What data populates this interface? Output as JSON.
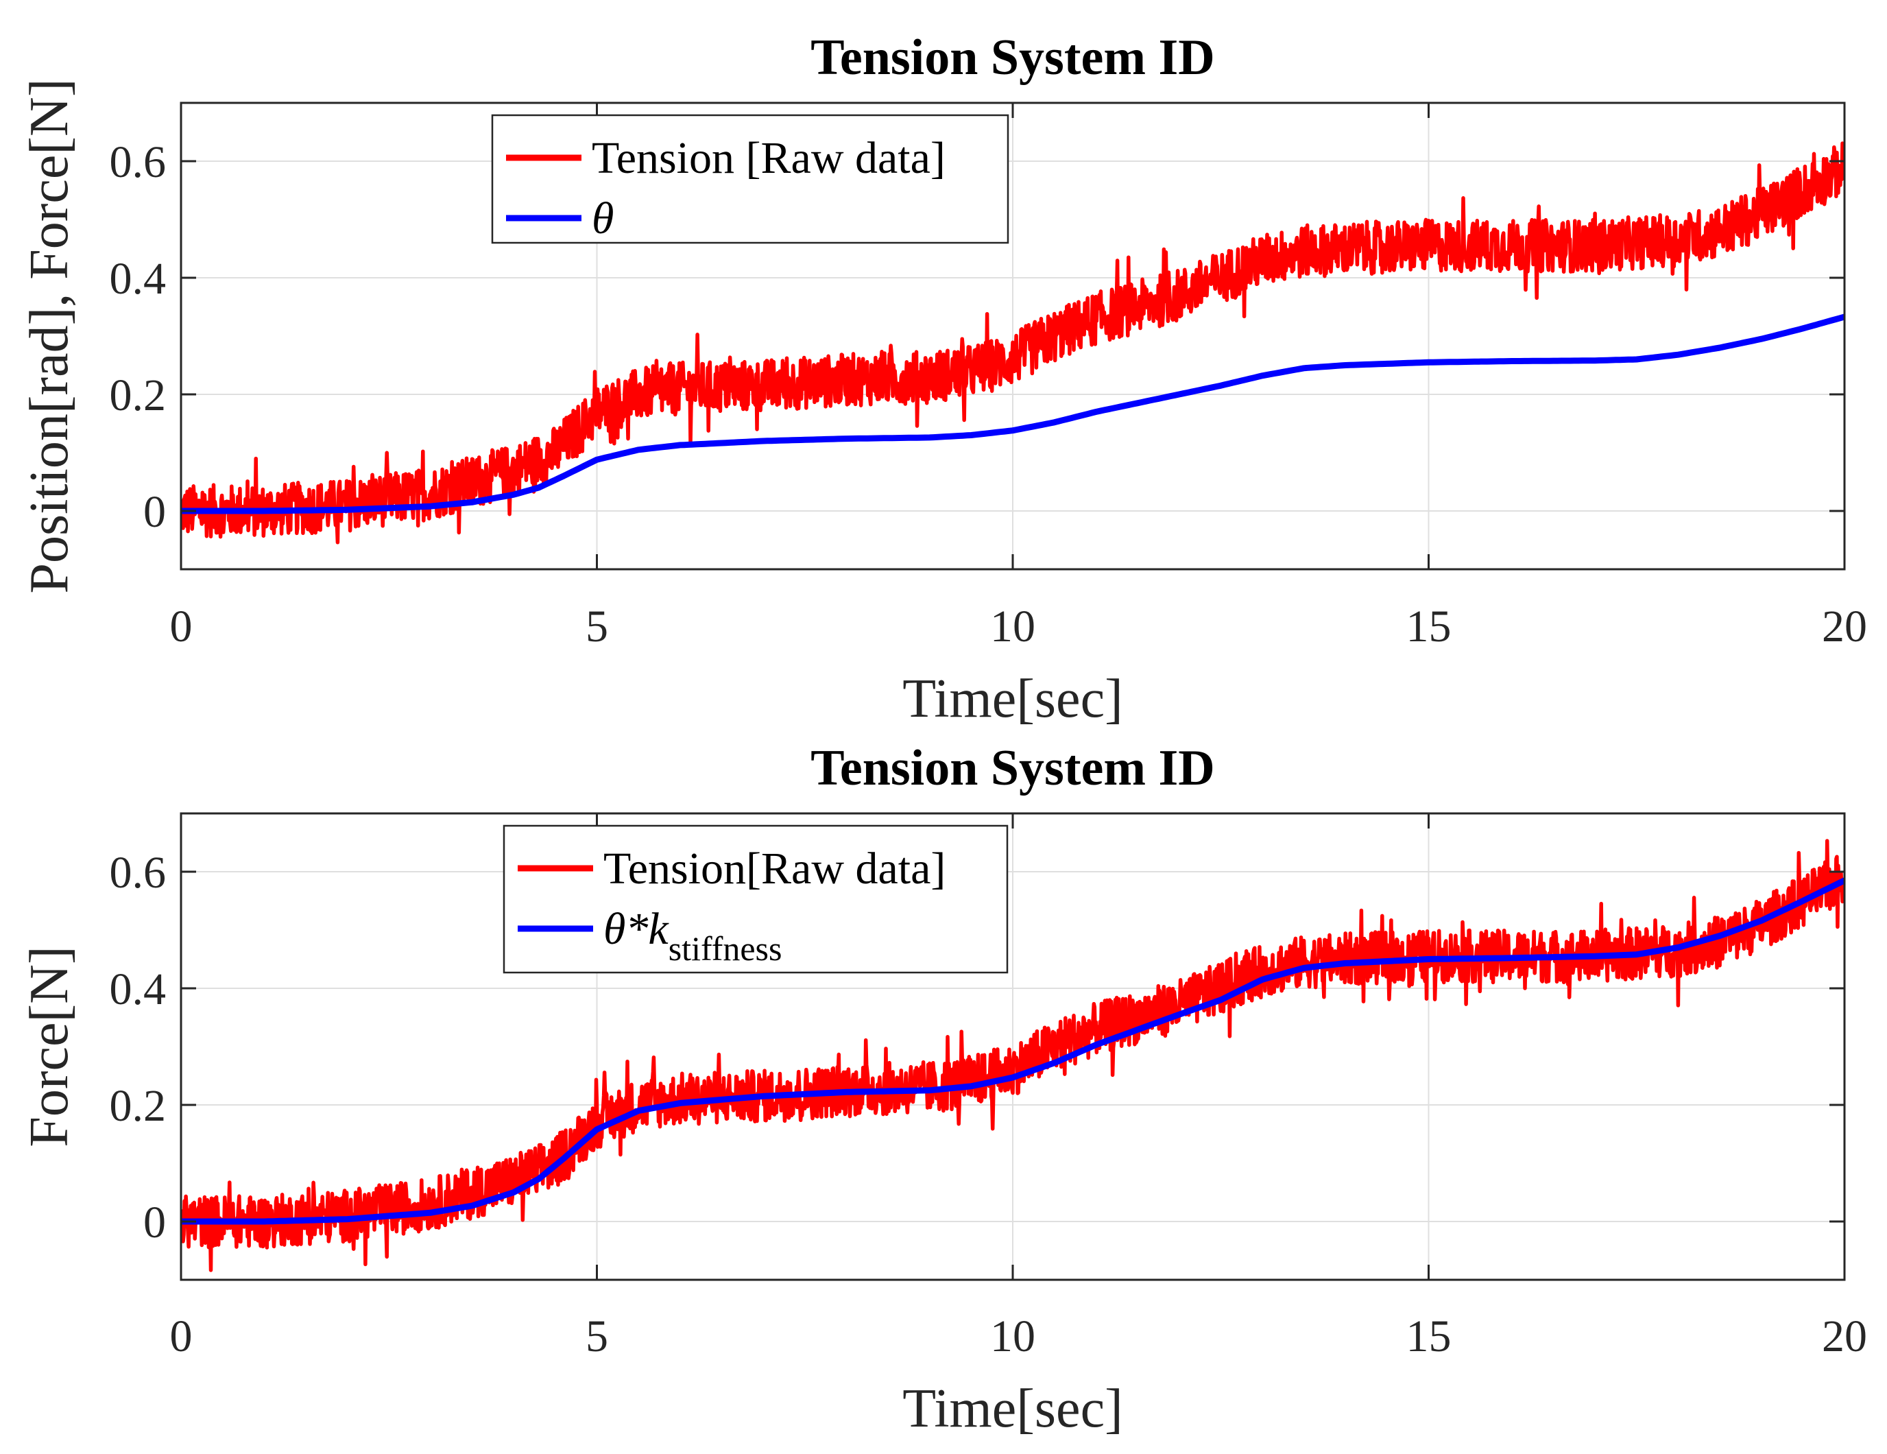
{
  "chart_data": [
    {
      "type": "line",
      "title": "Tension System ID",
      "xlabel": "Time[sec]",
      "ylabel": "Position[rad], Force[N]",
      "xlim": [
        0,
        20
      ],
      "ylim": [
        -0.1,
        0.7
      ],
      "xticks": [
        0,
        5,
        10,
        15,
        20
      ],
      "xtick_labels": [
        "0",
        "5",
        "10",
        "15",
        "20"
      ],
      "yticks": [
        0,
        0.2,
        0.4,
        0.6
      ],
      "ytick_labels": [
        "0",
        "0.2",
        "0.4",
        "0.6"
      ],
      "grid": true,
      "legend_position": "top-left",
      "legend": [
        {
          "name": "Tension [Raw data]",
          "sub": "",
          "color": "#ff0000"
        },
        {
          "name": "θ",
          "sub": "",
          "color": "#0000ff"
        }
      ],
      "series": [
        {
          "name": "Tension [Raw data]",
          "color": "#ff0000",
          "kind": "noisy",
          "noise_amplitude": 0.045,
          "x": [
            0,
            1,
            2,
            3,
            3.5,
            4,
            4.5,
            5,
            5.5,
            6,
            7,
            8,
            9,
            9.5,
            10,
            10.5,
            11,
            12,
            13,
            13.5,
            14,
            15,
            16,
            17,
            18,
            18.5,
            19,
            19.5,
            20
          ],
          "y": [
            0.0,
            0.0,
            0.01,
            0.03,
            0.05,
            0.07,
            0.1,
            0.17,
            0.2,
            0.21,
            0.215,
            0.225,
            0.23,
            0.24,
            0.26,
            0.3,
            0.33,
            0.37,
            0.43,
            0.445,
            0.45,
            0.455,
            0.455,
            0.455,
            0.465,
            0.48,
            0.51,
            0.55,
            0.59
          ]
        },
        {
          "name": "θ",
          "color": "#0000ff",
          "kind": "smooth",
          "x": [
            0,
            1,
            2,
            3,
            3.5,
            4,
            4.3,
            4.6,
            5,
            5.5,
            6,
            7,
            8,
            9,
            9.5,
            10,
            10.5,
            11,
            12,
            12.5,
            13,
            13.5,
            14,
            15,
            16,
            17,
            17.5,
            18,
            18.5,
            19,
            19.5,
            20
          ],
          "y": [
            0.0,
            0.0,
            0.002,
            0.008,
            0.015,
            0.028,
            0.04,
            0.06,
            0.088,
            0.105,
            0.113,
            0.12,
            0.124,
            0.126,
            0.13,
            0.138,
            0.152,
            0.17,
            0.2,
            0.215,
            0.232,
            0.245,
            0.25,
            0.255,
            0.257,
            0.258,
            0.26,
            0.268,
            0.28,
            0.295,
            0.313,
            0.333
          ]
        }
      ]
    },
    {
      "type": "line",
      "title": "Tension System ID",
      "xlabel": "Time[sec]",
      "ylabel": "Force[N]",
      "xlim": [
        0,
        20
      ],
      "ylim": [
        -0.1,
        0.7
      ],
      "xticks": [
        0,
        5,
        10,
        15,
        20
      ],
      "xtick_labels": [
        "0",
        "5",
        "10",
        "15",
        "20"
      ],
      "yticks": [
        0,
        0.2,
        0.4,
        0.6
      ],
      "ytick_labels": [
        "0",
        "0.2",
        "0.4",
        "0.6"
      ],
      "grid": true,
      "legend_position": "top-left",
      "legend": [
        {
          "name": "Tension[Raw data]",
          "sub": "",
          "color": "#ff0000"
        },
        {
          "name": "θ*k",
          "sub": "stiffness",
          "color": "#0000ff"
        }
      ],
      "series": [
        {
          "name": "Tension[Raw data]",
          "color": "#ff0000",
          "kind": "noisy",
          "noise_amplitude": 0.045,
          "x": [
            0,
            1,
            2,
            3,
            3.5,
            4,
            4.5,
            5,
            5.5,
            6,
            7,
            8,
            9,
            9.5,
            10,
            10.5,
            11,
            12,
            13,
            13.5,
            14,
            15,
            16,
            17,
            18,
            18.5,
            19,
            19.5,
            20
          ],
          "y": [
            0.0,
            0.0,
            0.01,
            0.03,
            0.05,
            0.07,
            0.1,
            0.17,
            0.2,
            0.21,
            0.215,
            0.225,
            0.23,
            0.24,
            0.26,
            0.3,
            0.33,
            0.37,
            0.43,
            0.445,
            0.45,
            0.455,
            0.455,
            0.455,
            0.465,
            0.48,
            0.51,
            0.55,
            0.59
          ]
        },
        {
          "name": "θ*k stiffness",
          "color": "#0000ff",
          "kind": "smooth",
          "x": [
            0,
            1,
            2,
            3,
            3.5,
            4,
            4.3,
            4.6,
            5,
            5.5,
            6,
            7,
            8,
            9,
            9.5,
            10,
            10.5,
            11,
            12,
            12.5,
            13,
            13.5,
            14,
            15,
            16,
            17,
            17.5,
            18,
            18.5,
            19,
            19.5,
            20
          ],
          "y": [
            0.0,
            0.0,
            0.004,
            0.015,
            0.027,
            0.05,
            0.073,
            0.108,
            0.158,
            0.19,
            0.203,
            0.215,
            0.222,
            0.225,
            0.232,
            0.247,
            0.272,
            0.303,
            0.355,
            0.38,
            0.415,
            0.435,
            0.443,
            0.45,
            0.452,
            0.455,
            0.458,
            0.47,
            0.49,
            0.516,
            0.55,
            0.585
          ]
        }
      ]
    }
  ]
}
